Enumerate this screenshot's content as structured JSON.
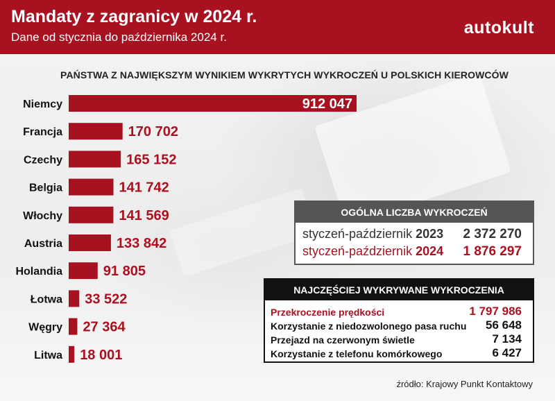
{
  "header": {
    "title": "Mandaty z zagranicy w 2024 r.",
    "subtitle": "Dane od stycznia do października 2024 r.",
    "brand": "autokult"
  },
  "colors": {
    "accent": "#a8111f",
    "dark_box": "#111111",
    "grey_box": "#555555"
  },
  "chart_data": {
    "type": "bar",
    "orientation": "horizontal",
    "title": "PAŃSTWA Z NAJWIĘKSZYM WYNIKIEM WYKRYTYCH WYKROCZEŃ U POLSKICH KIEROWCÓW",
    "categories": [
      "Niemcy",
      "Francja",
      "Czechy",
      "Belgia",
      "Włochy",
      "Austria",
      "Holandia",
      "Łotwa",
      "Węgry",
      "Litwa"
    ],
    "values": [
      912047,
      170702,
      165152,
      141742,
      141569,
      133842,
      91805,
      33522,
      27364,
      18001
    ],
    "value_labels": [
      "912 047",
      "170 702",
      "165 152",
      "141 742",
      "141 569",
      "133 842",
      "91 805",
      "33 522",
      "27 364",
      "18 001"
    ],
    "xlim": [
      0,
      912047
    ],
    "grid": false,
    "legend": "none"
  },
  "totals_box": {
    "header": "OGÓLNA LICZBA WYKROCZEŃ",
    "rows": [
      {
        "label": "styczeń-październik",
        "year": "2023",
        "value": "2 372 270",
        "color": "#333333"
      },
      {
        "label": "styczeń-październik",
        "year": "2024",
        "value": "1 876 297",
        "color": "#a8111f"
      }
    ]
  },
  "offenses_box": {
    "header": "NAJCZĘŚCIEJ WYKRYWANE WYKROCZENIA",
    "rows": [
      {
        "label": "Przekroczenie prędkości",
        "value": "1 797 986",
        "color": "#a8111f"
      },
      {
        "label": "Korzystanie z niedozwolonego pasa ruchu",
        "value": "56 648",
        "color": "#111111"
      },
      {
        "label": "Przejazd na czerwonym świetle",
        "value": "7 134",
        "color": "#111111"
      },
      {
        "label": "Korzystanie z telefonu komórkowego",
        "value": "6 427",
        "color": "#111111"
      }
    ]
  },
  "source": "źródło: Krajowy Punkt Kontaktowy"
}
